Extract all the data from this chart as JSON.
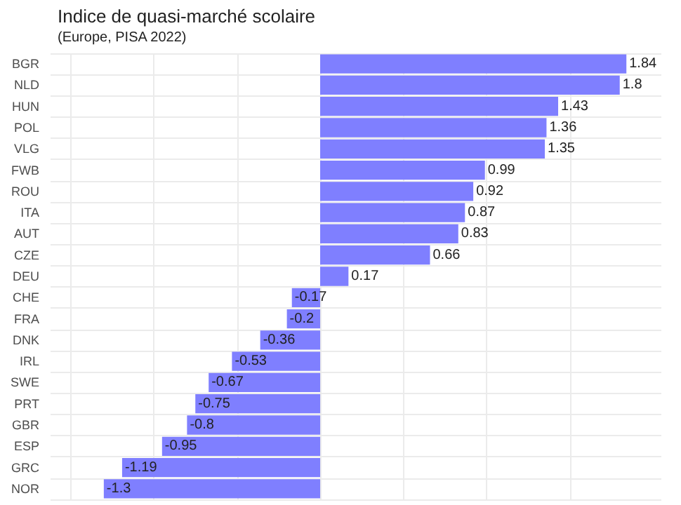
{
  "chart_data": {
    "type": "bar",
    "orientation": "horizontal",
    "title": "Indice de quasi-marché scolaire",
    "subtitle": "(Europe, PISA 2022)",
    "categories": [
      "BGR",
      "NLD",
      "HUN",
      "POL",
      "VLG",
      "FWB",
      "ROU",
      "ITA",
      "AUT",
      "CZE",
      "DEU",
      "CHE",
      "FRA",
      "DNK",
      "IRL",
      "SWE",
      "PRT",
      "GBR",
      "ESP",
      "GRC",
      "NOR"
    ],
    "values": [
      1.84,
      1.8,
      1.43,
      1.36,
      1.35,
      0.99,
      0.92,
      0.87,
      0.83,
      0.66,
      0.17,
      -0.17,
      -0.2,
      -0.36,
      -0.53,
      -0.67,
      -0.75,
      -0.8,
      -0.95,
      -1.19,
      -1.3
    ],
    "color": "#7f7fff",
    "data_labels": true,
    "grid": true,
    "tick_labels": "y",
    "xlim": [
      -1.62,
      2.05
    ],
    "xticks": [
      {
        "value": -1.5,
        "label": null
      },
      {
        "value": -1,
        "label": null
      },
      {
        "value": -0.5,
        "label": null
      },
      {
        "value": 0,
        "label": null
      },
      {
        "value": 0.5,
        "label": null
      },
      {
        "value": 1,
        "label": null
      },
      {
        "value": 1.5,
        "label": null
      }
    ]
  }
}
